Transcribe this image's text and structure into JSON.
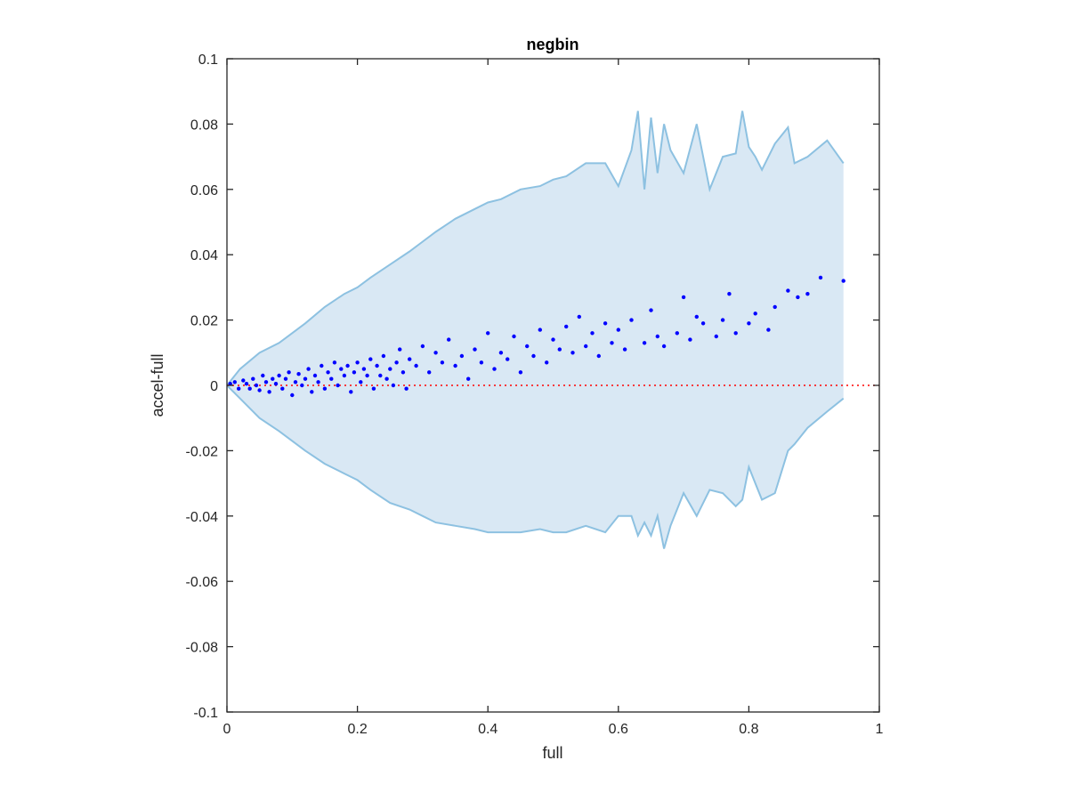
{
  "chart_data": {
    "type": "scatter",
    "title": "negbin",
    "xlabel": "full",
    "ylabel": "accel-full",
    "xlim": [
      0,
      1
    ],
    "ylim": [
      -0.1,
      0.1
    ],
    "x_ticks": [
      "0",
      "0.2",
      "0.4",
      "0.6",
      "0.8",
      "1"
    ],
    "y_ticks": [
      "-0.1",
      "-0.08",
      "-0.06",
      "-0.04",
      "-0.02",
      "0",
      "0.02",
      "0.04",
      "0.06",
      "0.08",
      "0.1"
    ],
    "grid": false,
    "reference_line": {
      "y": 0,
      "color": "#ff0000",
      "style": "dotted"
    },
    "band": {
      "fill_color": "#d9e8f4",
      "line_color": "#8dc1e1",
      "x": [
        0,
        0.02,
        0.05,
        0.08,
        0.1,
        0.12,
        0.15,
        0.18,
        0.2,
        0.22,
        0.25,
        0.28,
        0.3,
        0.32,
        0.35,
        0.38,
        0.4,
        0.42,
        0.45,
        0.48,
        0.5,
        0.52,
        0.55,
        0.58,
        0.6,
        0.62,
        0.63,
        0.64,
        0.65,
        0.66,
        0.67,
        0.68,
        0.7,
        0.72,
        0.74,
        0.76,
        0.78,
        0.79,
        0.8,
        0.81,
        0.82,
        0.84,
        0.86,
        0.87,
        0.89,
        0.92,
        0.945
      ],
      "upper": [
        0,
        0.005,
        0.01,
        0.013,
        0.016,
        0.019,
        0.024,
        0.028,
        0.03,
        0.033,
        0.037,
        0.041,
        0.044,
        0.047,
        0.051,
        0.054,
        0.056,
        0.057,
        0.06,
        0.061,
        0.063,
        0.064,
        0.068,
        0.068,
        0.061,
        0.072,
        0.084,
        0.06,
        0.082,
        0.065,
        0.08,
        0.072,
        0.065,
        0.08,
        0.06,
        0.07,
        0.071,
        0.084,
        0.073,
        0.07,
        0.066,
        0.074,
        0.079,
        0.068,
        0.07,
        0.075,
        0.068
      ],
      "lower": [
        0,
        -0.004,
        -0.01,
        -0.014,
        -0.017,
        -0.02,
        -0.024,
        -0.027,
        -0.029,
        -0.032,
        -0.036,
        -0.038,
        -0.04,
        -0.042,
        -0.043,
        -0.044,
        -0.045,
        -0.045,
        -0.045,
        -0.044,
        -0.045,
        -0.045,
        -0.043,
        -0.045,
        -0.04,
        -0.04,
        -0.046,
        -0.042,
        -0.046,
        -0.04,
        -0.05,
        -0.043,
        -0.033,
        -0.04,
        -0.032,
        -0.033,
        -0.037,
        -0.035,
        -0.025,
        -0.03,
        -0.035,
        -0.033,
        -0.02,
        -0.018,
        -0.013,
        -0.008,
        -0.004
      ]
    },
    "series": [
      {
        "color": "#0000ff",
        "x": [
          0.005,
          0.012,
          0.018,
          0.025,
          0.03,
          0.035,
          0.04,
          0.045,
          0.05,
          0.055,
          0.06,
          0.065,
          0.07,
          0.075,
          0.08,
          0.085,
          0.09,
          0.095,
          0.1,
          0.105,
          0.11,
          0.115,
          0.12,
          0.125,
          0.13,
          0.135,
          0.14,
          0.145,
          0.15,
          0.155,
          0.16,
          0.165,
          0.17,
          0.175,
          0.18,
          0.185,
          0.19,
          0.195,
          0.2,
          0.205,
          0.21,
          0.215,
          0.22,
          0.225,
          0.23,
          0.235,
          0.24,
          0.245,
          0.25,
          0.255,
          0.26,
          0.265,
          0.27,
          0.275,
          0.28,
          0.29,
          0.3,
          0.31,
          0.32,
          0.33,
          0.34,
          0.35,
          0.36,
          0.37,
          0.38,
          0.39,
          0.4,
          0.41,
          0.42,
          0.43,
          0.44,
          0.45,
          0.46,
          0.47,
          0.48,
          0.49,
          0.5,
          0.51,
          0.52,
          0.53,
          0.54,
          0.55,
          0.56,
          0.57,
          0.58,
          0.59,
          0.6,
          0.61,
          0.62,
          0.64,
          0.65,
          0.66,
          0.67,
          0.69,
          0.7,
          0.71,
          0.72,
          0.73,
          0.75,
          0.76,
          0.77,
          0.78,
          0.8,
          0.81,
          0.83,
          0.84,
          0.86,
          0.875,
          0.89,
          0.91,
          0.945
        ],
        "y": [
          0.0005,
          0.001,
          -0.001,
          0.0015,
          0.0005,
          -0.001,
          0.002,
          0.0,
          -0.0015,
          0.003,
          0.001,
          -0.002,
          0.002,
          0.0005,
          0.003,
          -0.001,
          0.002,
          0.004,
          -0.003,
          0.001,
          0.0035,
          0.0,
          0.002,
          0.005,
          -0.002,
          0.003,
          0.001,
          0.006,
          -0.001,
          0.004,
          0.002,
          0.007,
          0.0,
          0.005,
          0.003,
          0.006,
          -0.002,
          0.004,
          0.007,
          0.001,
          0.005,
          0.003,
          0.008,
          -0.001,
          0.006,
          0.003,
          0.009,
          0.002,
          0.005,
          0.0,
          0.007,
          0.011,
          0.004,
          -0.001,
          0.008,
          0.006,
          0.012,
          0.004,
          0.01,
          0.007,
          0.014,
          0.006,
          0.009,
          0.002,
          0.011,
          0.007,
          0.016,
          0.005,
          0.01,
          0.008,
          0.015,
          0.004,
          0.012,
          0.009,
          0.017,
          0.007,
          0.014,
          0.011,
          0.018,
          0.01,
          0.021,
          0.012,
          0.016,
          0.009,
          0.019,
          0.013,
          0.017,
          0.011,
          0.02,
          0.013,
          0.023,
          0.015,
          0.012,
          0.016,
          0.027,
          0.014,
          0.021,
          0.019,
          0.015,
          0.02,
          0.028,
          0.016,
          0.019,
          0.022,
          0.017,
          0.024,
          0.029,
          0.027,
          0.028,
          0.033,
          0.032
        ]
      }
    ]
  }
}
